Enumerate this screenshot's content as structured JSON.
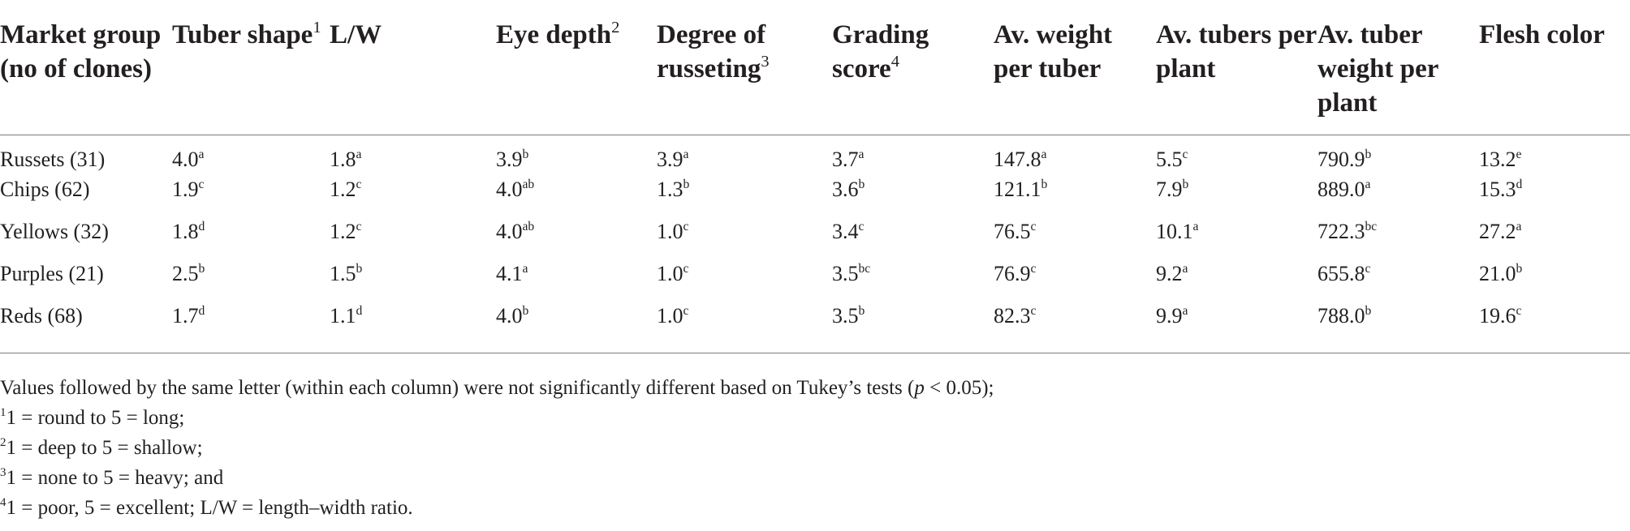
{
  "table": {
    "headers": [
      {
        "text": "Market group (no of clones)",
        "sup": ""
      },
      {
        "text": "Tuber shape",
        "sup": "1"
      },
      {
        "text": "L/W",
        "sup": ""
      },
      {
        "text": "Eye depth",
        "sup": "2"
      },
      {
        "text": "Degree of russeting",
        "sup": "3"
      },
      {
        "text": "Grading score",
        "sup": "4"
      },
      {
        "text": "Av. weight per tuber",
        "sup": ""
      },
      {
        "text": "Av. tubers per plant",
        "sup": ""
      },
      {
        "text": "Av. tuber weight per plant",
        "sup": ""
      },
      {
        "text": "Flesh color",
        "sup": ""
      }
    ],
    "rows": [
      {
        "group": "Russets (31)",
        "cells": [
          {
            "v": "4.0",
            "s": "a"
          },
          {
            "v": "1.8",
            "s": "a"
          },
          {
            "v": "3.9",
            "s": "b"
          },
          {
            "v": "3.9",
            "s": "a"
          },
          {
            "v": "3.7",
            "s": "a"
          },
          {
            "v": "147.8",
            "s": "a"
          },
          {
            "v": "5.5",
            "s": "c"
          },
          {
            "v": "790.9",
            "s": "b"
          },
          {
            "v": "13.2",
            "s": "e"
          }
        ]
      },
      {
        "group": "Chips (62)",
        "cells": [
          {
            "v": "1.9",
            "s": "c"
          },
          {
            "v": "1.2",
            "s": "c"
          },
          {
            "v": "4.0",
            "s": "ab"
          },
          {
            "v": "1.3",
            "s": "b"
          },
          {
            "v": "3.6",
            "s": "b"
          },
          {
            "v": "121.1",
            "s": "b"
          },
          {
            "v": "7.9",
            "s": "b"
          },
          {
            "v": "889.0",
            "s": "a"
          },
          {
            "v": "15.3",
            "s": "d"
          }
        ]
      },
      {
        "group": "Yellows (32)",
        "cells": [
          {
            "v": "1.8",
            "s": "d"
          },
          {
            "v": "1.2",
            "s": "c"
          },
          {
            "v": "4.0",
            "s": "ab"
          },
          {
            "v": "1.0",
            "s": "c"
          },
          {
            "v": "3.4",
            "s": "c"
          },
          {
            "v": "76.5",
            "s": "c"
          },
          {
            "v": "10.1",
            "s": "a"
          },
          {
            "v": "722.3",
            "s": "bc"
          },
          {
            "v": "27.2",
            "s": "a"
          }
        ]
      },
      {
        "group": "Purples (21)",
        "cells": [
          {
            "v": "2.5",
            "s": "b"
          },
          {
            "v": "1.5",
            "s": "b"
          },
          {
            "v": "4.1",
            "s": "a"
          },
          {
            "v": "1.0",
            "s": "c"
          },
          {
            "v": "3.5",
            "s": "bc"
          },
          {
            "v": "76.9",
            "s": "c"
          },
          {
            "v": "9.2",
            "s": "a"
          },
          {
            "v": "655.8",
            "s": "c"
          },
          {
            "v": "21.0",
            "s": "b"
          }
        ]
      },
      {
        "group": "Reds (68)",
        "cells": [
          {
            "v": "1.7",
            "s": "d"
          },
          {
            "v": "1.1",
            "s": "d"
          },
          {
            "v": "4.0",
            "s": "b"
          },
          {
            "v": "1.0",
            "s": "c"
          },
          {
            "v": "3.5",
            "s": "b"
          },
          {
            "v": "82.3",
            "s": "c"
          },
          {
            "v": "9.9",
            "s": "a"
          },
          {
            "v": "788.0",
            "s": "b"
          },
          {
            "v": "19.6",
            "s": "c"
          }
        ]
      }
    ]
  },
  "notes": {
    "line1_before": "Values followed by the same letter (within each column) were not significantly different based on Tukey’s tests (",
    "line1_p": "p",
    "line1_after": " < 0.05);",
    "footnotes": [
      {
        "sup": "1",
        "text": "1 = round to 5 = long;"
      },
      {
        "sup": "2",
        "text": "1 = deep to 5 = shallow;"
      },
      {
        "sup": "3",
        "text": "1 = none to 5 = heavy; and"
      },
      {
        "sup": "4",
        "text": "1 = poor, 5 = excellent; L/W = length–width ratio."
      }
    ]
  },
  "colors": {
    "text": "#231f20",
    "rule": "#7a7a7a"
  }
}
